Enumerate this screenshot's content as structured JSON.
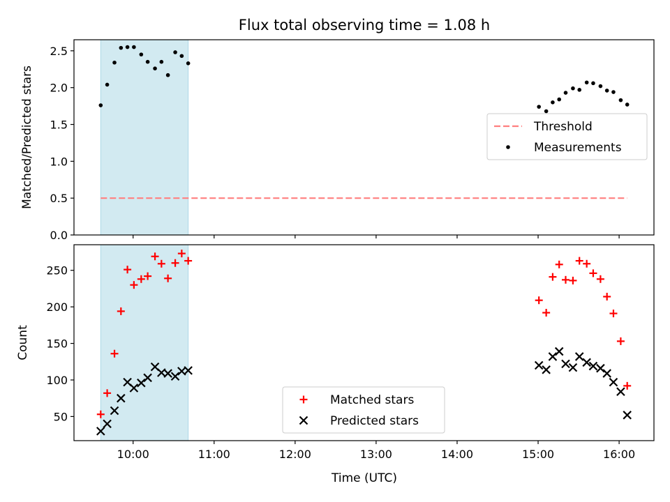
{
  "chart_data": {
    "type": "scatter",
    "title": "Flux total observing time = 1.08 h",
    "xlabel": "Time (UTC)",
    "x_tick_labels": [
      "10:00",
      "11:00",
      "12:00",
      "13:00",
      "14:00",
      "15:00",
      "16:00"
    ],
    "x_ticks_hours": [
      10,
      11,
      12,
      13,
      14,
      15,
      16
    ],
    "xlim_hours": [
      9.27,
      16.43
    ],
    "shaded_span_hours": [
      9.6,
      10.68
    ],
    "shade_color": "#add8e6",
    "panels": [
      {
        "ylabel": "Matched/Predicted stars",
        "ylim": [
          0,
          2.65
        ],
        "y_ticks": [
          "0.0",
          "0.5",
          "1.0",
          "1.5",
          "2.0",
          "2.5"
        ],
        "legend_position": "center-right",
        "threshold": {
          "name": "Threshold",
          "value": 0.5,
          "x_range_hours": [
            9.6,
            16.1
          ],
          "color": "#ff7f7f"
        },
        "series": [
          {
            "name": "Measurements",
            "marker": "dot",
            "color": "#000000",
            "points": [
              [
                9.6,
                1.76
              ],
              [
                9.68,
                2.04
              ],
              [
                9.77,
                2.34
              ],
              [
                9.85,
                2.54
              ],
              [
                9.93,
                2.55
              ],
              [
                10.01,
                2.55
              ],
              [
                10.1,
                2.45
              ],
              [
                10.18,
                2.35
              ],
              [
                10.27,
                2.26
              ],
              [
                10.35,
                2.35
              ],
              [
                10.43,
                2.17
              ],
              [
                10.52,
                2.48
              ],
              [
                10.6,
                2.43
              ],
              [
                10.68,
                2.33
              ],
              [
                15.01,
                1.74
              ],
              [
                15.1,
                1.68
              ],
              [
                15.18,
                1.8
              ],
              [
                15.26,
                1.84
              ],
              [
                15.34,
                1.93
              ],
              [
                15.43,
                1.99
              ],
              [
                15.51,
                1.97
              ],
              [
                15.6,
                2.07
              ],
              [
                15.68,
                2.06
              ],
              [
                15.77,
                2.02
              ],
              [
                15.85,
                1.96
              ],
              [
                15.93,
                1.94
              ],
              [
                16.02,
                1.83
              ],
              [
                16.1,
                1.77
              ]
            ]
          }
        ]
      },
      {
        "ylabel": "Count",
        "ylim": [
          17,
          285
        ],
        "y_ticks": [
          "50",
          "100",
          "150",
          "200",
          "250"
        ],
        "legend_position": "lower-center",
        "series": [
          {
            "name": "Matched stars",
            "marker": "plus",
            "color": "#ff0000",
            "points": [
              [
                9.6,
                53
              ],
              [
                9.68,
                82
              ],
              [
                9.77,
                136
              ],
              [
                9.85,
                194
              ],
              [
                9.93,
                251
              ],
              [
                10.01,
                230
              ],
              [
                10.1,
                238
              ],
              [
                10.18,
                242
              ],
              [
                10.27,
                269
              ],
              [
                10.35,
                259
              ],
              [
                10.43,
                239
              ],
              [
                10.52,
                260
              ],
              [
                10.6,
                273
              ],
              [
                10.68,
                263
              ],
              [
                15.01,
                209
              ],
              [
                15.1,
                192
              ],
              [
                15.18,
                241
              ],
              [
                15.26,
                258
              ],
              [
                15.34,
                237
              ],
              [
                15.43,
                236
              ],
              [
                15.51,
                263
              ],
              [
                15.6,
                259
              ],
              [
                15.68,
                246
              ],
              [
                15.77,
                238
              ],
              [
                15.85,
                214
              ],
              [
                15.93,
                191
              ],
              [
                16.02,
                153
              ],
              [
                16.1,
                92
              ]
            ]
          },
          {
            "name": "Predicted stars",
            "marker": "x",
            "color": "#000000",
            "points": [
              [
                9.6,
                30
              ],
              [
                9.68,
                40
              ],
              [
                9.77,
                58
              ],
              [
                9.85,
                75
              ],
              [
                9.93,
                97
              ],
              [
                10.01,
                89
              ],
              [
                10.1,
                96
              ],
              [
                10.18,
                103
              ],
              [
                10.27,
                118
              ],
              [
                10.35,
                110
              ],
              [
                10.43,
                109
              ],
              [
                10.52,
                105
              ],
              [
                10.6,
                112
              ],
              [
                10.68,
                113
              ],
              [
                15.01,
                120
              ],
              [
                15.1,
                114
              ],
              [
                15.18,
                132
              ],
              [
                15.26,
                139
              ],
              [
                15.34,
                122
              ],
              [
                15.43,
                117
              ],
              [
                15.51,
                132
              ],
              [
                15.6,
                124
              ],
              [
                15.68,
                119
              ],
              [
                15.77,
                116
              ],
              [
                15.85,
                109
              ],
              [
                15.93,
                97
              ],
              [
                16.02,
                84
              ],
              [
                16.1,
                52
              ]
            ]
          }
        ]
      }
    ]
  }
}
